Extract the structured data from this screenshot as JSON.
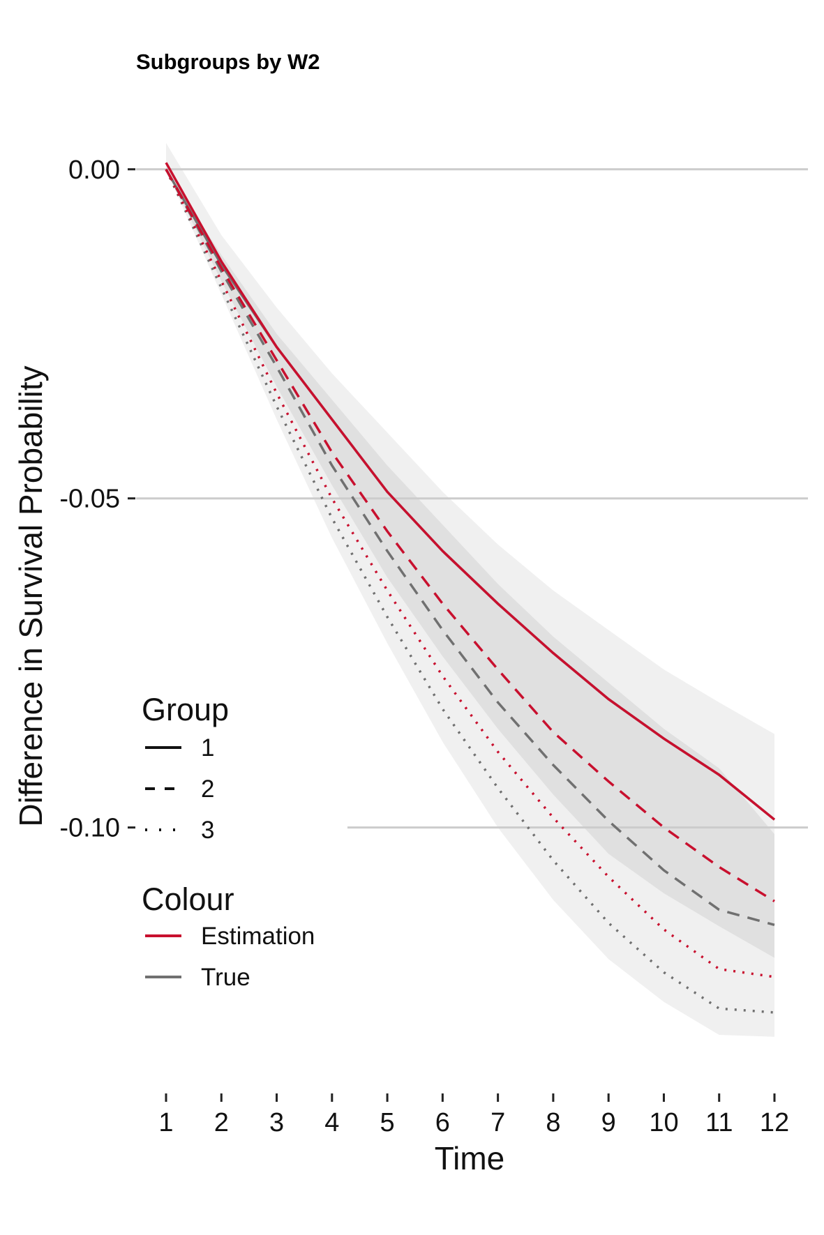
{
  "chart_data": {
    "type": "line",
    "title": "Subgroups by W2",
    "xlabel": "Time",
    "ylabel": "Difference in Survival Probability",
    "x": [
      1,
      2,
      3,
      4,
      5,
      6,
      7,
      8,
      9,
      10,
      11,
      12
    ],
    "xlim": [
      1,
      12
    ],
    "ylim": [
      -0.135,
      0.004
    ],
    "x_ticks": [
      "1",
      "2",
      "3",
      "4",
      "5",
      "6",
      "7",
      "8",
      "9",
      "10",
      "11",
      "12"
    ],
    "y_ticks": [
      {
        "value": 0.0,
        "label": "0.00"
      },
      {
        "value": -0.05,
        "label": "-0.05"
      },
      {
        "value": -0.1,
        "label": "-0.10"
      }
    ],
    "grid": "horizontal-major",
    "legend_placement": "left-inside",
    "colors": {
      "Estimation": "#c8102e",
      "True": "#707070",
      "band_outer": "#f0f0f0",
      "band_inner": "#e0e0e0",
      "grid": "#cccccc"
    },
    "series": [
      {
        "group": "1",
        "colour": "Estimation",
        "linetype": "solid",
        "values": [
          0.001,
          -0.014,
          -0.027,
          -0.038,
          -0.049,
          -0.058,
          -0.066,
          -0.0735,
          -0.0805,
          -0.0865,
          -0.092,
          -0.0988
        ]
      },
      {
        "group": "1",
        "colour": "True",
        "linetype": "solid",
        "values": [
          0.0,
          -0.0145,
          -0.027,
          -0.038,
          -0.049,
          -0.058,
          -0.066,
          -0.0735,
          -0.0805,
          -0.0865,
          -0.092,
          -0.0988
        ]
      },
      {
        "group": "2",
        "colour": "Estimation",
        "linetype": "dashed",
        "values": [
          0.0,
          -0.015,
          -0.029,
          -0.043,
          -0.055,
          -0.066,
          -0.076,
          -0.0855,
          -0.093,
          -0.1,
          -0.106,
          -0.1112
        ]
      },
      {
        "group": "2",
        "colour": "True",
        "linetype": "dashed",
        "values": [
          0.0,
          -0.0155,
          -0.03,
          -0.045,
          -0.058,
          -0.07,
          -0.081,
          -0.0905,
          -0.099,
          -0.1065,
          -0.1125,
          -0.1148
        ]
      },
      {
        "group": "3",
        "colour": "Estimation",
        "linetype": "dotted",
        "values": [
          0.0,
          -0.017,
          -0.034,
          -0.05,
          -0.064,
          -0.077,
          -0.0885,
          -0.0985,
          -0.1075,
          -0.1155,
          -0.1215,
          -0.1227
        ]
      },
      {
        "group": "3",
        "colour": "True",
        "linetype": "dotted",
        "values": [
          0.0,
          -0.018,
          -0.036,
          -0.053,
          -0.068,
          -0.082,
          -0.094,
          -0.105,
          -0.1145,
          -0.122,
          -0.1275,
          -0.1281
        ]
      }
    ],
    "bands": [
      {
        "shade": "outer",
        "lower": [
          0.0,
          -0.019,
          -0.038,
          -0.056,
          -0.072,
          -0.087,
          -0.1,
          -0.111,
          -0.12,
          -0.1265,
          -0.1315,
          -0.1318
        ],
        "upper": [
          0.004,
          -0.01,
          -0.021,
          -0.031,
          -0.04,
          -0.049,
          -0.057,
          -0.064,
          -0.07,
          -0.076,
          -0.081,
          -0.0858
        ]
      },
      {
        "shade": "inner",
        "lower": [
          0.0,
          -0.017,
          -0.033,
          -0.048,
          -0.062,
          -0.074,
          -0.085,
          -0.095,
          -0.104,
          -0.11,
          -0.115,
          -0.1198
        ]
      },
      {
        "shade": "inner",
        "upper": [
          0.0,
          -0.013,
          -0.025,
          -0.035,
          -0.045,
          -0.054,
          -0.063,
          -0.071,
          -0.078,
          -0.085,
          -0.091,
          -0.101
        ]
      }
    ],
    "legend": {
      "group_title": "Group",
      "groups": [
        {
          "label": "1",
          "linetype": "solid"
        },
        {
          "label": "2",
          "linetype": "dashed"
        },
        {
          "label": "3",
          "linetype": "dotted"
        }
      ],
      "colour_title": "Colour",
      "colours": [
        {
          "label": "Estimation",
          "color": "#c8102e"
        },
        {
          "label": "True",
          "color": "#707070"
        }
      ]
    }
  }
}
